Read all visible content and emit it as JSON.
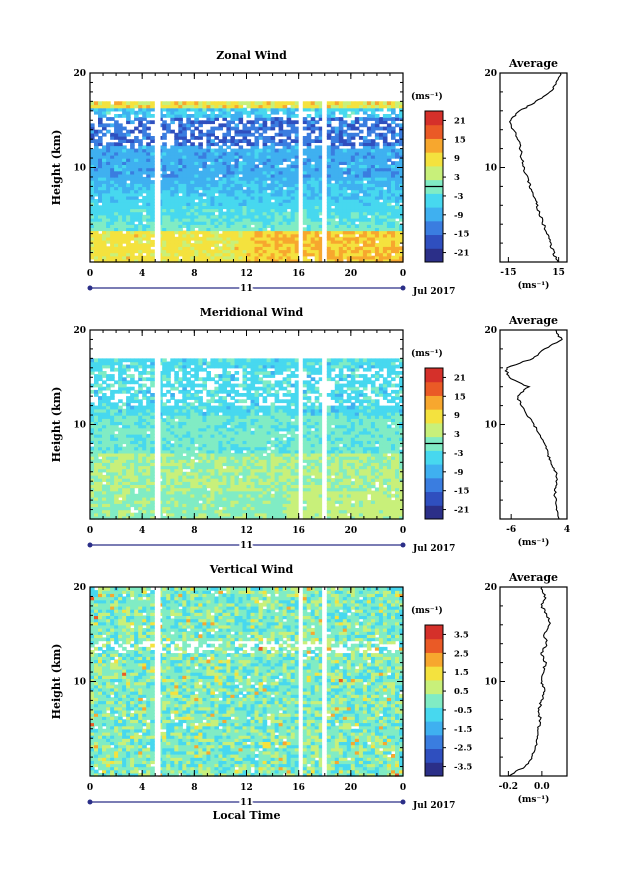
{
  "chart_data": [
    {
      "type": "heatmap",
      "title": "Zonal Wind",
      "ylabel": "Height (km)",
      "ylim": [
        0,
        20
      ],
      "yticks": [
        "20",
        "10"
      ],
      "xlim": [
        0,
        24
      ],
      "xticks": [
        "0",
        "4",
        "8",
        "12",
        "16",
        "20",
        "0"
      ],
      "day_label": "11",
      "date_label": "Jul 2017",
      "colorbar": {
        "unit_label": "(ms⁻¹)",
        "ticks": [
          "21",
          "15",
          "9",
          "3",
          "-3",
          "-9",
          "-15",
          "-21"
        ],
        "tick_values": [
          21,
          15,
          9,
          3,
          -3,
          -9,
          -15,
          -21
        ],
        "range": [
          -24,
          24
        ],
        "zero_line": true
      },
      "field": {
        "kind": "zonal",
        "top_km": 17,
        "ranges": [
          -24,
          24
        ]
      },
      "gaps_hours": [
        5.1,
        5.5,
        16.0,
        16.4,
        17.8,
        19.1
      ],
      "profile": {
        "title": "Average",
        "xlabel": "(ms⁻¹)",
        "xlim": [
          -20,
          20
        ],
        "xticks": [
          "-15",
          "15"
        ],
        "xtick_values": [
          -15,
          15
        ],
        "yticks": [
          "20",
          "10"
        ],
        "heights_km": [
          0,
          1,
          2,
          3,
          4,
          5,
          6,
          7,
          8,
          9,
          10,
          11,
          12,
          13,
          14,
          15,
          16,
          17,
          18,
          19,
          20
        ],
        "values": [
          14,
          12,
          10,
          8,
          6,
          4,
          2,
          0,
          -2,
          -4,
          -6,
          -7,
          -8,
          -9,
          -12,
          -14,
          -8,
          2,
          10,
          14,
          16
        ]
      }
    },
    {
      "type": "heatmap",
      "title": "Meridional Wind",
      "ylabel": "Height (km)",
      "ylim": [
        0,
        20
      ],
      "yticks": [
        "20",
        "10"
      ],
      "xlim": [
        0,
        24
      ],
      "xticks": [
        "0",
        "4",
        "8",
        "12",
        "16",
        "20",
        "0"
      ],
      "day_label": "11",
      "date_label": "Jul 2017",
      "colorbar": {
        "unit_label": "(ms⁻¹)",
        "ticks": [
          "21",
          "15",
          "9",
          "3",
          "-3",
          "-9",
          "-15",
          "-21"
        ],
        "tick_values": [
          21,
          15,
          9,
          3,
          -3,
          -9,
          -15,
          -21
        ],
        "range": [
          -24,
          24
        ],
        "zero_line": true
      },
      "field": {
        "kind": "meridional",
        "top_km": 17,
        "ranges": [
          -24,
          24
        ]
      },
      "gaps_hours": [
        5.1,
        5.5,
        16.0,
        16.4,
        17.8,
        19.1
      ],
      "profile": {
        "title": "Average",
        "xlabel": "(ms⁻¹)",
        "xlim": [
          -8,
          4
        ],
        "xticks": [
          "-6",
          "4"
        ],
        "xtick_values": [
          -6,
          4
        ],
        "yticks": [
          "20",
          "10"
        ],
        "heights_km": [
          0,
          1,
          2,
          3,
          4,
          5,
          6,
          7,
          8,
          9,
          10,
          11,
          12,
          13,
          14,
          15,
          16,
          17,
          18,
          19,
          20
        ],
        "values": [
          2.5,
          2.3,
          2.0,
          1.8,
          2.2,
          2.0,
          1.0,
          0.5,
          0.0,
          -1.0,
          -2.0,
          -3.0,
          -4.0,
          -5.0,
          -3.0,
          -6.5,
          -7.0,
          -2.0,
          0.0,
          3.0,
          2.0
        ]
      }
    },
    {
      "type": "heatmap",
      "title": "Vertical Wind",
      "ylabel": "Height (km)",
      "xlabel": "Local Time",
      "ylim": [
        0,
        20
      ],
      "yticks": [
        "20",
        "10"
      ],
      "xlim": [
        0,
        24
      ],
      "xticks": [
        "0",
        "4",
        "8",
        "12",
        "16",
        "20",
        "0"
      ],
      "day_label": "11",
      "date_label": "Jul 2017",
      "colorbar": {
        "unit_label": "(ms⁻¹)",
        "ticks": [
          "3.5",
          "2.5",
          "1.5",
          "0.5",
          "-0.5",
          "-1.5",
          "-2.5",
          "-3.5"
        ],
        "tick_values": [
          3.5,
          2.5,
          1.5,
          0.5,
          -0.5,
          -1.5,
          -2.5,
          -3.5
        ],
        "range": [
          -4,
          4
        ],
        "zero_line": false
      },
      "field": {
        "kind": "vertical",
        "top_km": 20,
        "ranges": [
          -4,
          4
        ]
      },
      "gaps_hours": [
        5.1,
        5.5,
        16.0,
        16.4,
        17.8,
        19.1
      ],
      "profile": {
        "title": "Average",
        "xlabel": "(ms⁻¹)",
        "xlim": [
          -0.25,
          0.15
        ],
        "xticks": [
          "-0.2",
          "0.0"
        ],
        "xtick_values": [
          -0.2,
          0.0
        ],
        "yticks": [
          "20",
          "10"
        ],
        "heights_km": [
          0,
          1,
          2,
          3,
          4,
          5,
          6,
          7,
          8,
          9,
          10,
          11,
          12,
          13,
          14,
          15,
          16,
          17,
          18,
          19,
          20
        ],
        "values": [
          -0.2,
          -0.1,
          -0.06,
          -0.04,
          -0.03,
          -0.02,
          -0.01,
          -0.02,
          0.0,
          0.02,
          0.0,
          0.01,
          0.02,
          0.0,
          0.03,
          0.01,
          0.05,
          0.03,
          0.0,
          0.02,
          0.0
        ]
      }
    }
  ],
  "colors": {
    "scale": [
      "#2b2f88",
      "#2f4fbf",
      "#3a7de0",
      "#3fb0f0",
      "#47d8ef",
      "#80ecc4",
      "#c8f07a",
      "#f4e23e",
      "#f7a72e",
      "#ea5a26",
      "#d5302a"
    ],
    "axis": "#000000",
    "day_marker": "#2b2f88"
  }
}
